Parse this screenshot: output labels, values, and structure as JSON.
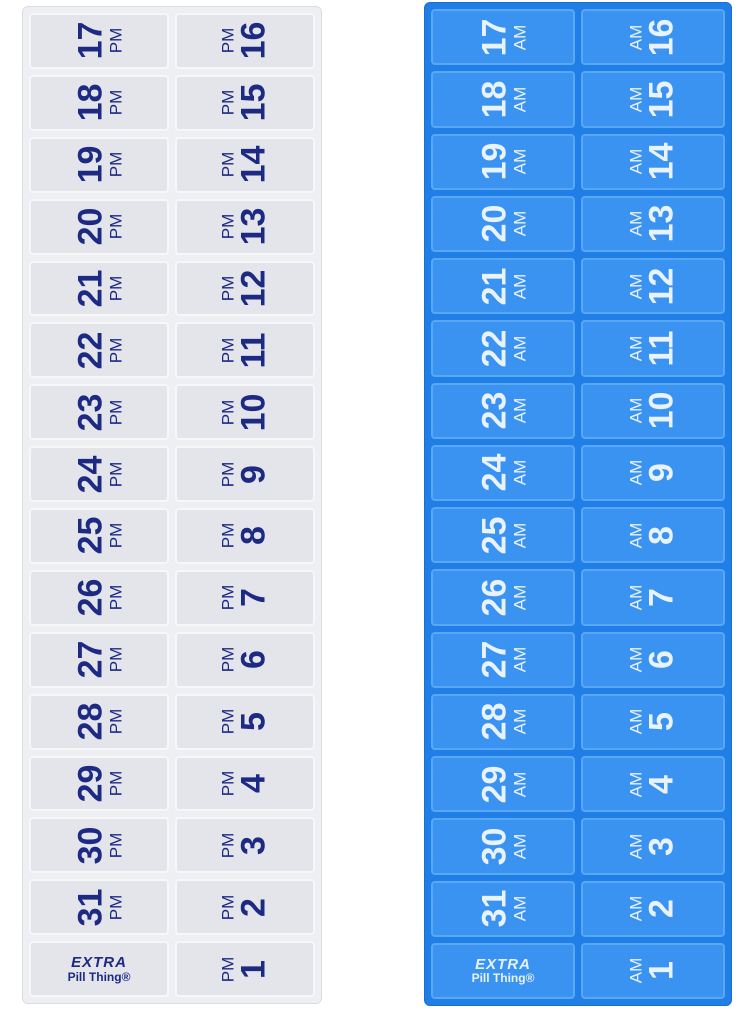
{
  "white": {
    "color": "#eeeff2",
    "text_color": "#1c2a84",
    "period": "PM",
    "left": [
      "17",
      "18",
      "19",
      "20",
      "21",
      "22",
      "23",
      "24",
      "25",
      "26",
      "27",
      "28",
      "29",
      "30",
      "31"
    ],
    "right": [
      "16",
      "15",
      "14",
      "13",
      "12",
      "11",
      "10",
      "9",
      "8",
      "7",
      "6",
      "5",
      "4",
      "3",
      "2",
      "1"
    ]
  },
  "blue": {
    "color": "#1f7fe6",
    "text_color": "#e9f2ff",
    "period": "AM",
    "left": [
      "17",
      "18",
      "19",
      "20",
      "21",
      "22",
      "23",
      "24",
      "25",
      "26",
      "27",
      "28",
      "29",
      "30",
      "31"
    ],
    "right": [
      "16",
      "15",
      "14",
      "13",
      "12",
      "11",
      "10",
      "9",
      "8",
      "7",
      "6",
      "5",
      "4",
      "3",
      "2",
      "1"
    ]
  },
  "logo": {
    "line1": "EXTRA",
    "line2": "Pill Thing®"
  }
}
